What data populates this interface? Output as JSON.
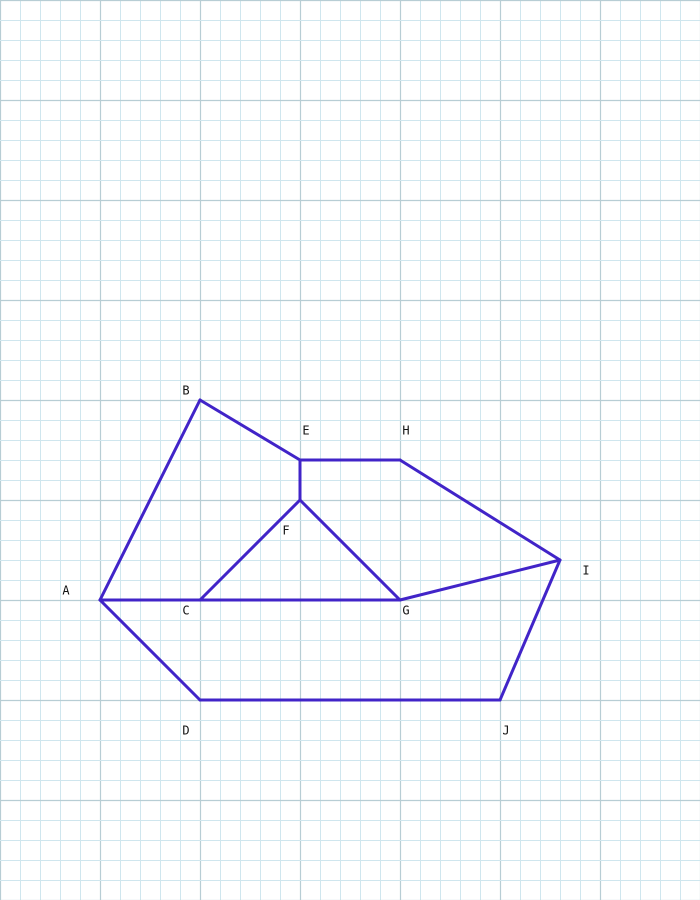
{
  "colors": {
    "background": "#ffffff",
    "grid_minor": "#cfe6ee",
    "grid_major": "#b7cdd4",
    "shape_stroke": "#4124c8",
    "label": "#111111"
  },
  "points": [
    {
      "id": "A",
      "label": "A"
    },
    {
      "id": "B",
      "label": "B"
    },
    {
      "id": "C",
      "label": "C"
    },
    {
      "id": "D",
      "label": "D"
    },
    {
      "id": "E",
      "label": "E"
    },
    {
      "id": "F",
      "label": "F"
    },
    {
      "id": "G",
      "label": "G"
    },
    {
      "id": "H",
      "label": "H"
    },
    {
      "id": "I",
      "label": "I"
    },
    {
      "id": "J",
      "label": "J"
    }
  ],
  "segments": [
    [
      "A",
      "B"
    ],
    [
      "B",
      "E"
    ],
    [
      "E",
      "H"
    ],
    [
      "H",
      "I"
    ],
    [
      "I",
      "J"
    ],
    [
      "J",
      "D"
    ],
    [
      "D",
      "A"
    ],
    [
      "A",
      "C"
    ],
    [
      "C",
      "G"
    ],
    [
      "C",
      "F"
    ],
    [
      "F",
      "G"
    ],
    [
      "E",
      "F"
    ],
    [
      "G",
      "I"
    ]
  ]
}
